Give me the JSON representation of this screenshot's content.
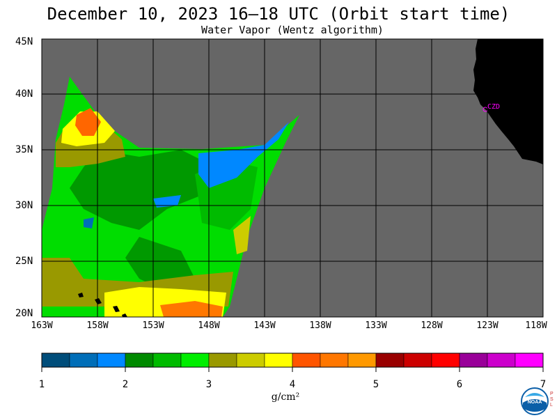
{
  "title": "December 10, 2023  16–18 UTC  (Orbit start time)",
  "subtitle": "Water Vapor (Wentz algorithm)",
  "map": {
    "lat_labels": [
      "45N",
      "40N",
      "35N",
      "30N",
      "25N",
      "20N"
    ],
    "lon_labels": [
      "163W",
      "158W",
      "153W",
      "148W",
      "143W",
      "138W",
      "133W",
      "128W",
      "123W",
      "118W"
    ],
    "station_label": "CZD",
    "colors": {
      "no_data": "#666666",
      "land": "#000000",
      "grid": "#000000",
      "station": "#ff00ff"
    }
  },
  "colorbar": {
    "tick_labels": [
      "1",
      "2",
      "3",
      "4",
      "5",
      "6",
      "7"
    ],
    "unit": "g/cm²",
    "colors": [
      "#004d7a",
      "#006eb8",
      "#0088ff",
      "#008a00",
      "#00bb00",
      "#00ee00",
      "#999900",
      "#cccc00",
      "#ffff00",
      "#ff5500",
      "#ff7700",
      "#ff9900",
      "#990000",
      "#cc0000",
      "#ff0000",
      "#990099",
      "#cc00cc",
      "#ff00ff"
    ]
  },
  "logo": {
    "text": "NOAA",
    "side_text": "P S L"
  }
}
